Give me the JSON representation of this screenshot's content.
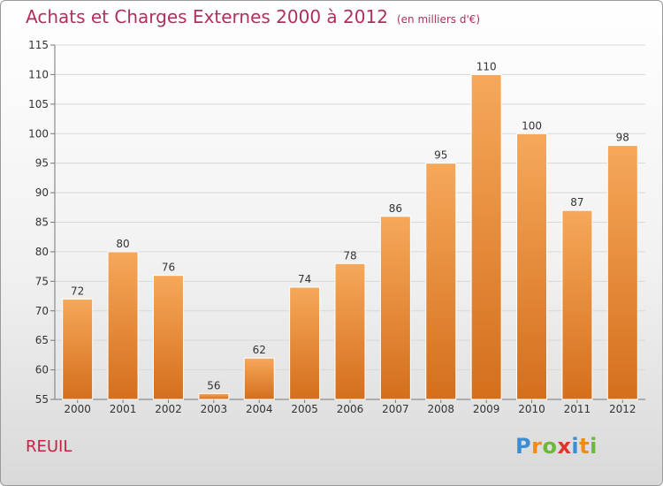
{
  "chart_data": {
    "type": "bar",
    "title": "Achats et Charges Externes 2000 à 2012",
    "unit_label": "(en milliers d'€)",
    "categories": [
      "2000",
      "2001",
      "2002",
      "2003",
      "2004",
      "2005",
      "2006",
      "2007",
      "2008",
      "2009",
      "2010",
      "2011",
      "2012"
    ],
    "values": [
      72,
      80,
      76,
      56,
      62,
      74,
      78,
      86,
      95,
      110,
      100,
      87,
      98
    ],
    "ylim": [
      55,
      115
    ],
    "yticks": [
      55,
      60,
      65,
      70,
      75,
      80,
      85,
      90,
      95,
      100,
      105,
      110,
      115
    ],
    "grid": true,
    "bar_color_top": "#f6a85a",
    "bar_color_bottom": "#d46f1c"
  },
  "place_name": "REUIL",
  "logo": {
    "text": "Proxiti",
    "letters": [
      {
        "ch": "P",
        "color": "#3a8fd4"
      },
      {
        "ch": "r",
        "color": "#f08a1c"
      },
      {
        "ch": "o",
        "color": "#6cb83a"
      },
      {
        "ch": "x",
        "color": "#e0342b"
      },
      {
        "ch": "i",
        "color": "#3a8fd4"
      },
      {
        "ch": "t",
        "color": "#f08a1c"
      },
      {
        "ch": "i",
        "color": "#6cb83a"
      }
    ]
  }
}
